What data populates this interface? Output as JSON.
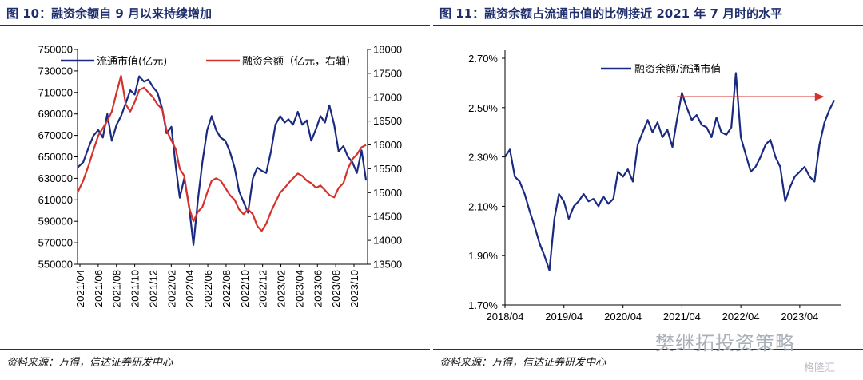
{
  "figures": [
    {
      "title": "图 10：融资余额自 9 月以来持续增加",
      "source": "资料来源：万得，信达证券研发中心"
    },
    {
      "title": "图 11：融资余额占流通市值的比例接近 2021 年 7 月时的水平",
      "source": "资料来源：万得，信达证券研发中心"
    }
  ],
  "watermark": {
    "text": "樊继拓投资策略",
    "brand": "格隆汇"
  },
  "colors": {
    "primary": "#1f2f6e",
    "series_blue": "#1a2a80",
    "series_red": "#d6322c",
    "arrow": "#d6322c"
  },
  "chart_data": [
    {
      "type": "line",
      "title": "",
      "y_left_ticks": [
        "750000",
        "730000",
        "710000",
        "690000",
        "670000",
        "650000",
        "630000",
        "610000",
        "590000",
        "570000",
        "550000"
      ],
      "y_right_ticks": [
        "18000",
        "17500",
        "17000",
        "16500",
        "16000",
        "15500",
        "15000",
        "14500",
        "14000",
        "13500"
      ],
      "ylim_left": [
        550000,
        750000
      ],
      "ylim_right": [
        13500,
        18000
      ],
      "x_tick_labels": [
        "2021/04",
        "2021/06",
        "2021/08",
        "2021/10",
        "2021/12",
        "2022/02",
        "2022/04",
        "2022/06",
        "2022/08",
        "2022/10",
        "2022/12",
        "2023/02",
        "2023/04",
        "2023/06",
        "2023/08",
        "2023/10"
      ],
      "legend_position": "top",
      "series": [
        {
          "name": "流通市值(亿元)",
          "axis": "left",
          "color": "#1a2a80",
          "points": [
            [
              "2021-04-01",
              640000
            ],
            [
              "2021-04-20",
              645000
            ],
            [
              "2021-05-10",
              660000
            ],
            [
              "2021-05-25",
              670000
            ],
            [
              "2021-06-10",
              675000
            ],
            [
              "2021-06-25",
              668000
            ],
            [
              "2021-07-10",
              690000
            ],
            [
              "2021-07-25",
              665000
            ],
            [
              "2021-08-10",
              680000
            ],
            [
              "2021-08-25",
              688000
            ],
            [
              "2021-09-10",
              700000
            ],
            [
              "2021-09-25",
              712000
            ],
            [
              "2021-10-10",
              708000
            ],
            [
              "2021-10-25",
              725000
            ],
            [
              "2021-11-10",
              720000
            ],
            [
              "2021-11-25",
              722000
            ],
            [
              "2021-12-10",
              715000
            ],
            [
              "2021-12-25",
              710000
            ],
            [
              "2022-01-10",
              695000
            ],
            [
              "2022-01-25",
              672000
            ],
            [
              "2022-02-10",
              678000
            ],
            [
              "2022-02-25",
              640000
            ],
            [
              "2022-03-10",
              612000
            ],
            [
              "2022-03-25",
              630000
            ],
            [
              "2022-04-10",
              605000
            ],
            [
              "2022-04-25",
              568000
            ],
            [
              "2022-05-10",
              610000
            ],
            [
              "2022-05-25",
              645000
            ],
            [
              "2022-06-10",
              675000
            ],
            [
              "2022-06-25",
              688000
            ],
            [
              "2022-07-10",
              675000
            ],
            [
              "2022-07-25",
              668000
            ],
            [
              "2022-08-10",
              665000
            ],
            [
              "2022-08-25",
              655000
            ],
            [
              "2022-09-10",
              640000
            ],
            [
              "2022-09-25",
              618000
            ],
            [
              "2022-10-10",
              608000
            ],
            [
              "2022-10-25",
              598000
            ],
            [
              "2022-11-10",
              630000
            ],
            [
              "2022-11-25",
              640000
            ],
            [
              "2022-12-10",
              637000
            ],
            [
              "2022-12-25",
              635000
            ],
            [
              "2023-01-10",
              655000
            ],
            [
              "2023-01-25",
              680000
            ],
            [
              "2023-02-10",
              688000
            ],
            [
              "2023-02-25",
              682000
            ],
            [
              "2023-03-10",
              685000
            ],
            [
              "2023-03-25",
              680000
            ],
            [
              "2023-04-10",
              692000
            ],
            [
              "2023-04-25",
              680000
            ],
            [
              "2023-05-10",
              684000
            ],
            [
              "2023-05-25",
              665000
            ],
            [
              "2023-06-10",
              676000
            ],
            [
              "2023-06-25",
              688000
            ],
            [
              "2023-07-10",
              682000
            ],
            [
              "2023-07-25",
              698000
            ],
            [
              "2023-08-10",
              680000
            ],
            [
              "2023-08-25",
              655000
            ],
            [
              "2023-09-10",
              660000
            ],
            [
              "2023-09-25",
              650000
            ],
            [
              "2023-10-10",
              645000
            ],
            [
              "2023-10-25",
              635000
            ],
            [
              "2023-11-10",
              656000
            ],
            [
              "2023-11-25",
              628000
            ]
          ]
        },
        {
          "name": "融资余额（亿元，右轴）",
          "axis": "right",
          "color": "#d6322c",
          "points": [
            [
              "2021-04-01",
              15000
            ],
            [
              "2021-04-20",
              15250
            ],
            [
              "2021-05-10",
              15600
            ],
            [
              "2021-05-25",
              15900
            ],
            [
              "2021-06-10",
              16200
            ],
            [
              "2021-06-25",
              16350
            ],
            [
              "2021-07-10",
              16500
            ],
            [
              "2021-07-25",
              16700
            ],
            [
              "2021-08-10",
              17100
            ],
            [
              "2021-08-25",
              17450
            ],
            [
              "2021-09-10",
              16850
            ],
            [
              "2021-09-25",
              16700
            ],
            [
              "2021-10-10",
              16900
            ],
            [
              "2021-10-25",
              17150
            ],
            [
              "2021-11-10",
              17200
            ],
            [
              "2021-11-25",
              17100
            ],
            [
              "2021-12-10",
              17000
            ],
            [
              "2021-12-25",
              16850
            ],
            [
              "2022-01-10",
              16750
            ],
            [
              "2022-01-25",
              16300
            ],
            [
              "2022-02-10",
              16100
            ],
            [
              "2022-02-25",
              15900
            ],
            [
              "2022-03-10",
              15500
            ],
            [
              "2022-03-25",
              15350
            ],
            [
              "2022-04-10",
              14700
            ],
            [
              "2022-04-25",
              14400
            ],
            [
              "2022-05-10",
              14600
            ],
            [
              "2022-05-25",
              14700
            ],
            [
              "2022-06-10",
              15000
            ],
            [
              "2022-06-25",
              15250
            ],
            [
              "2022-07-10",
              15300
            ],
            [
              "2022-07-25",
              15250
            ],
            [
              "2022-08-10",
              15100
            ],
            [
              "2022-08-25",
              14950
            ],
            [
              "2022-09-10",
              14850
            ],
            [
              "2022-09-25",
              14650
            ],
            [
              "2022-10-10",
              14550
            ],
            [
              "2022-10-25",
              14650
            ],
            [
              "2022-11-10",
              14550
            ],
            [
              "2022-11-25",
              14300
            ],
            [
              "2022-12-10",
              14200
            ],
            [
              "2022-12-25",
              14350
            ],
            [
              "2023-01-10",
              14600
            ],
            [
              "2023-01-25",
              14800
            ],
            [
              "2023-02-10",
              15000
            ],
            [
              "2023-02-25",
              15100
            ],
            [
              "2023-03-10",
              15200
            ],
            [
              "2023-03-25",
              15300
            ],
            [
              "2023-04-10",
              15400
            ],
            [
              "2023-04-25",
              15350
            ],
            [
              "2023-05-10",
              15250
            ],
            [
              "2023-05-25",
              15200
            ],
            [
              "2023-06-10",
              15100
            ],
            [
              "2023-06-25",
              15150
            ],
            [
              "2023-07-10",
              15050
            ],
            [
              "2023-07-25",
              14950
            ],
            [
              "2023-08-10",
              14900
            ],
            [
              "2023-08-25",
              15100
            ],
            [
              "2023-09-10",
              15200
            ],
            [
              "2023-09-25",
              15500
            ],
            [
              "2023-10-10",
              15700
            ],
            [
              "2023-10-25",
              15800
            ],
            [
              "2023-11-10",
              15950
            ],
            [
              "2023-11-25",
              16000
            ]
          ]
        }
      ]
    },
    {
      "type": "line",
      "title": "",
      "y_ticks": [
        "2.70%",
        "2.50%",
        "2.30%",
        "2.10%",
        "1.90%",
        "1.70%"
      ],
      "ylim": [
        1.7,
        2.7
      ],
      "x_tick_labels": [
        "2018/04",
        "2019/04",
        "2020/04",
        "2021/04",
        "2022/04",
        "2023/04"
      ],
      "legend_position": "top",
      "annotations": [
        {
          "type": "arrow",
          "from": [
            "2021-03-01",
            2.544
          ],
          "to": [
            "2023-09-01",
            2.544
          ],
          "color": "#d6322c"
        }
      ],
      "series": [
        {
          "name": "融资余额/流通市值",
          "color": "#1a2a80",
          "points": [
            [
              "2018-04-01",
              2.3
            ],
            [
              "2018-05-01",
              2.33
            ],
            [
              "2018-06-01",
              2.22
            ],
            [
              "2018-07-01",
              2.2
            ],
            [
              "2018-08-01",
              2.15
            ],
            [
              "2018-09-01",
              2.08
            ],
            [
              "2018-10-01",
              2.02
            ],
            [
              "2018-11-01",
              1.95
            ],
            [
              "2018-12-01",
              1.9
            ],
            [
              "2019-01-01",
              1.84
            ],
            [
              "2019-02-01",
              2.05
            ],
            [
              "2019-03-01",
              2.15
            ],
            [
              "2019-04-01",
              2.12
            ],
            [
              "2019-05-01",
              2.05
            ],
            [
              "2019-06-01",
              2.1
            ],
            [
              "2019-07-01",
              2.12
            ],
            [
              "2019-08-01",
              2.15
            ],
            [
              "2019-09-01",
              2.12
            ],
            [
              "2019-10-01",
              2.13
            ],
            [
              "2019-11-01",
              2.1
            ],
            [
              "2019-12-01",
              2.14
            ],
            [
              "2020-01-01",
              2.11
            ],
            [
              "2020-02-01",
              2.13
            ],
            [
              "2020-03-01",
              2.24
            ],
            [
              "2020-04-01",
              2.22
            ],
            [
              "2020-05-01",
              2.25
            ],
            [
              "2020-06-01",
              2.2
            ],
            [
              "2020-07-01",
              2.35
            ],
            [
              "2020-08-01",
              2.4
            ],
            [
              "2020-09-01",
              2.45
            ],
            [
              "2020-10-01",
              2.4
            ],
            [
              "2020-11-01",
              2.44
            ],
            [
              "2020-12-01",
              2.38
            ],
            [
              "2021-01-01",
              2.41
            ],
            [
              "2021-02-01",
              2.34
            ],
            [
              "2021-03-01",
              2.45
            ],
            [
              "2021-04-01",
              2.56
            ],
            [
              "2021-05-01",
              2.5
            ],
            [
              "2021-06-01",
              2.45
            ],
            [
              "2021-07-01",
              2.47
            ],
            [
              "2021-08-01",
              2.43
            ],
            [
              "2021-09-01",
              2.42
            ],
            [
              "2021-10-01",
              2.38
            ],
            [
              "2021-11-01",
              2.46
            ],
            [
              "2021-12-01",
              2.4
            ],
            [
              "2022-01-01",
              2.39
            ],
            [
              "2022-02-01",
              2.42
            ],
            [
              "2022-03-01",
              2.64
            ],
            [
              "2022-04-01",
              2.38
            ],
            [
              "2022-05-01",
              2.31
            ],
            [
              "2022-06-01",
              2.24
            ],
            [
              "2022-07-01",
              2.26
            ],
            [
              "2022-08-01",
              2.3
            ],
            [
              "2022-09-01",
              2.35
            ],
            [
              "2022-10-01",
              2.37
            ],
            [
              "2022-11-01",
              2.3
            ],
            [
              "2022-12-01",
              2.26
            ],
            [
              "2023-01-01",
              2.12
            ],
            [
              "2023-02-01",
              2.18
            ],
            [
              "2023-03-01",
              2.22
            ],
            [
              "2023-04-01",
              2.24
            ],
            [
              "2023-05-01",
              2.26
            ],
            [
              "2023-06-01",
              2.22
            ],
            [
              "2023-07-01",
              2.2
            ],
            [
              "2023-08-01",
              2.35
            ],
            [
              "2023-09-01",
              2.44
            ],
            [
              "2023-10-01",
              2.49
            ],
            [
              "2023-11-01",
              2.53
            ]
          ]
        }
      ]
    }
  ]
}
